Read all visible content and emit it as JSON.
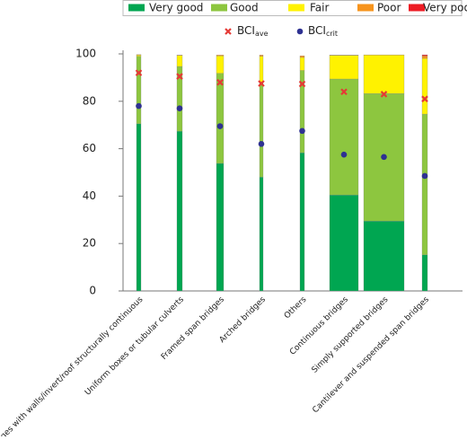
{
  "chart_data": {
    "type": "bar",
    "stacked": true,
    "categories": [
      "Bridges with walls/invert/roof structurally continuous",
      "Uniform boxes or tubular culverts",
      "Framed span bridges",
      "Arched bridges",
      "Others",
      "Continuous bridges",
      "Simply supported bridges",
      "Cantilever and suspended span bridges"
    ],
    "series": [
      {
        "name": "Very good",
        "color": "#00a651",
        "values": [
          70.5,
          67.4,
          53.8,
          48,
          58.3,
          40.5,
          29.5,
          15.2
        ]
      },
      {
        "name": "Good",
        "color": "#8dc63f",
        "values": [
          28.5,
          27.3,
          38,
          40,
          34.7,
          48.9,
          53.8,
          59.4
        ]
      },
      {
        "name": "Fair",
        "color": "#fff200",
        "values": [
          0.5,
          4.6,
          7.4,
          11,
          5.5,
          10,
          16.2,
          23.5
        ]
      },
      {
        "name": "Poor",
        "color": "#f7941d",
        "values": [
          0.2,
          0.2,
          0.3,
          0.5,
          0.7,
          0.1,
          0.1,
          1
        ]
      },
      {
        "name": "Very poor",
        "color": "#ed1c24",
        "values": [
          0,
          0,
          0,
          0,
          0,
          0,
          0,
          0.5
        ]
      }
    ],
    "markers": [
      {
        "type": "scatter",
        "marker": "x",
        "name": "BCI",
        "subscript": "ave",
        "color": "#e53935",
        "values": [
          92,
          90.5,
          88,
          87.5,
          87.3,
          84,
          83,
          81
        ]
      },
      {
        "type": "scatter",
        "marker": "circle",
        "name": "BCI",
        "subscript": "crit",
        "color": "#2e3192",
        "values": [
          78,
          77,
          69.5,
          62,
          67.5,
          57.5,
          56.5,
          48.5
        ]
      }
    ],
    "ylim": [
      0,
      100
    ],
    "yticks": [
      0,
      20,
      40,
      60,
      80,
      100
    ],
    "grid": false
  }
}
